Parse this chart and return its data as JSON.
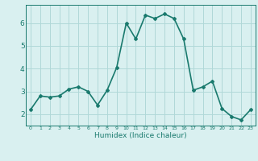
{
  "x": [
    0,
    1,
    2,
    3,
    4,
    5,
    6,
    7,
    8,
    9,
    10,
    11,
    12,
    13,
    14,
    15,
    16,
    17,
    18,
    19,
    20,
    21,
    22,
    23
  ],
  "y": [
    2.2,
    2.8,
    2.75,
    2.8,
    3.1,
    3.2,
    3.0,
    2.4,
    3.05,
    4.05,
    6.0,
    5.3,
    6.35,
    6.2,
    6.4,
    6.2,
    5.3,
    3.05,
    3.2,
    3.45,
    2.25,
    1.9,
    1.75,
    2.2
  ],
  "xlabel": "Humidex (Indice chaleur)",
  "ylim": [
    1.5,
    6.8
  ],
  "xlim": [
    -0.5,
    23.5
  ],
  "yticks": [
    2,
    3,
    4,
    5,
    6
  ],
  "xticks": [
    0,
    1,
    2,
    3,
    4,
    5,
    6,
    7,
    8,
    9,
    10,
    11,
    12,
    13,
    14,
    15,
    16,
    17,
    18,
    19,
    20,
    21,
    22,
    23
  ],
  "line_color": "#1a7a6e",
  "bg_color": "#d9f0f0",
  "grid_color": "#b0d8d8",
  "tick_color": "#1a7a6e",
  "label_color": "#1a7a6e",
  "marker": "D",
  "marker_size": 2,
  "line_width": 1.2
}
